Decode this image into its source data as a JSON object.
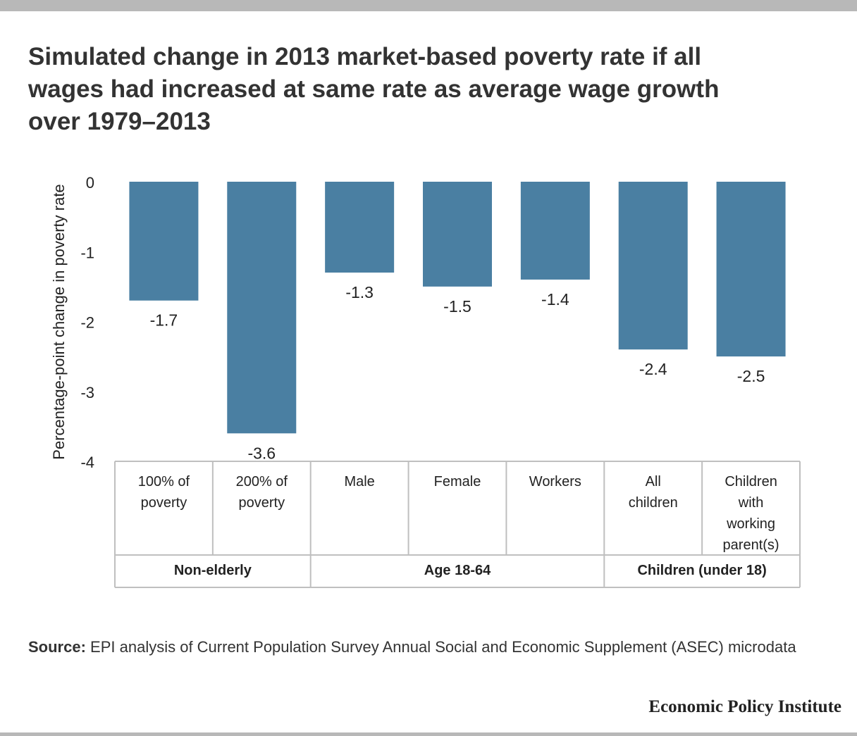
{
  "title_lines": [
    "Simulated change in 2013 market-based poverty rate if all",
    "wages had increased at same rate as average wage growth",
    "over 1979–2013"
  ],
  "source": {
    "label": "Source:",
    "text": "EPI analysis of Current Population Survey Annual Social and Economic Supplement (ASEC) microdata"
  },
  "logo": "Economic Policy Institute",
  "colors": {
    "bar": "#4a7fa2",
    "table_border": "#bfbfbf"
  },
  "chart_data": {
    "type": "bar",
    "ylabel": "Percentage-point change in poverty rate",
    "ylim": [
      -4,
      0
    ],
    "yticks": [
      "0",
      "-1",
      "-2",
      "-3",
      "-4"
    ],
    "categories": [
      [
        "100% of",
        "poverty"
      ],
      [
        "200% of",
        "poverty"
      ],
      [
        "Male"
      ],
      [
        "Female"
      ],
      [
        "Workers"
      ],
      [
        "All",
        "children"
      ],
      [
        "Children",
        "with",
        "working",
        "parent(s)"
      ]
    ],
    "values": [
      -1.7,
      -3.6,
      -1.3,
      -1.5,
      -1.4,
      -2.4,
      -2.5
    ],
    "value_labels": [
      "-1.7",
      "-3.6",
      "-1.3",
      "-1.5",
      "-1.4",
      "-2.4",
      "-2.5"
    ],
    "groups": [
      {
        "label": "Non-elderly",
        "span": 2
      },
      {
        "label": "Age 18-64",
        "span": 3
      },
      {
        "label": "Children (under 18)",
        "span": 2
      }
    ],
    "grid": false,
    "legend": "none"
  }
}
